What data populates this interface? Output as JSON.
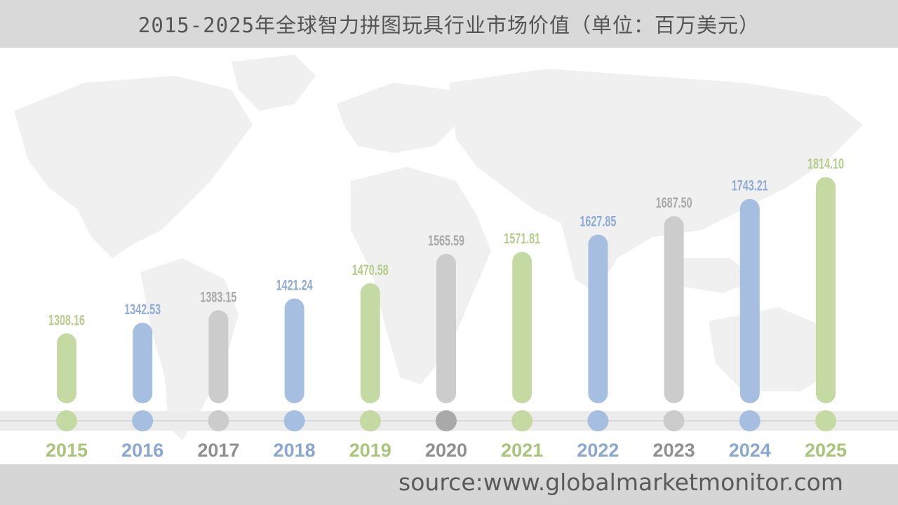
{
  "title": "2015-2025年全球智力拼图玩具行业市场价值（单位：百万美元）",
  "source": "source:www.globalmarketmonitor.com",
  "colors": {
    "green": "#c5d9a3",
    "blue": "#a6bfe0",
    "gray": "#cccccc",
    "dark_gray": "#a9a9a9",
    "title_bg": "#d9d9d9",
    "source_bg": "#d6d6d6"
  },
  "chart_data": {
    "type": "bar",
    "title": "2015-2025年全球智力拼图玩具行业市场价值（单位：百万美元）",
    "xlabel": "",
    "ylabel": "",
    "categories": [
      "2015",
      "2016",
      "2017",
      "2018",
      "2019",
      "2020",
      "2021",
      "2022",
      "2023",
      "2024",
      "2025"
    ],
    "values": [
      1308.16,
      1342.53,
      1383.15,
      1421.24,
      1470.58,
      1565.59,
      1571.81,
      1627.85,
      1687.5,
      1743.21,
      1814.1
    ],
    "value_labels": [
      "1308.16",
      "1342.53",
      "1383.15",
      "1421.24",
      "1470.58",
      "1565.59",
      "1571.81",
      "1627.85",
      "1687.50",
      "1743.21",
      "1814.10"
    ],
    "bar_colors": [
      "green",
      "blue",
      "gray",
      "blue",
      "green",
      "gray",
      "green",
      "blue",
      "gray",
      "blue",
      "green"
    ],
    "dot_colors": [
      "green",
      "blue",
      "gray",
      "blue",
      "green",
      "dark_gray",
      "green",
      "blue",
      "gray",
      "blue",
      "green"
    ],
    "grid": false,
    "legend": "none"
  }
}
